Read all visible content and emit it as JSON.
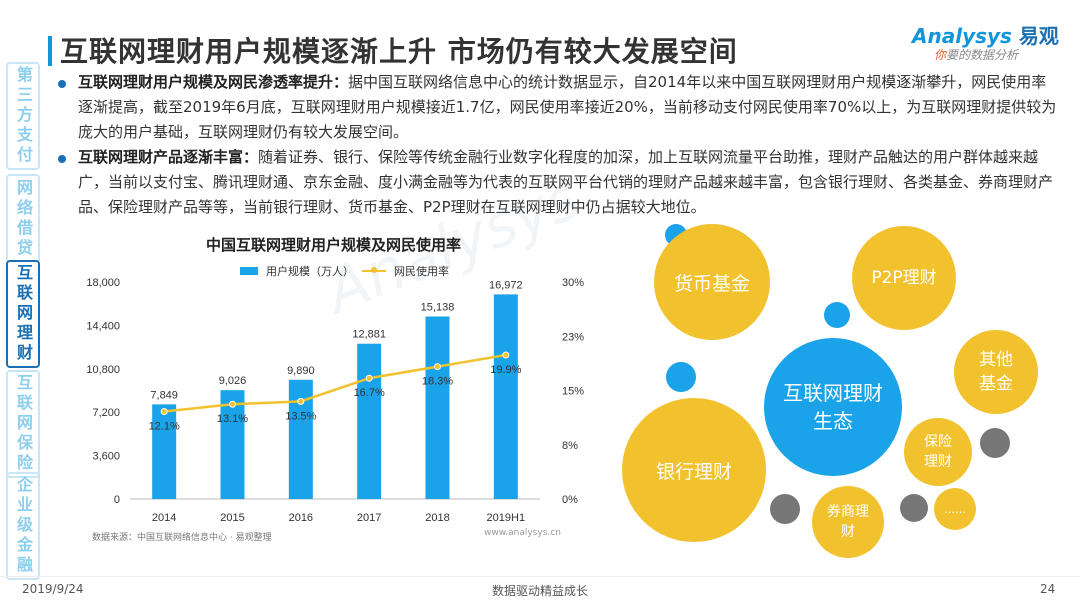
{
  "title": "互联网理财用户规模逐渐上升 市场仍有较大发展空间",
  "logo": {
    "main": "Analysys",
    "cn": "易观",
    "sub_first": "你",
    "sub_rest": "要的数据分析"
  },
  "side_nav": [
    {
      "label": "第三方支付",
      "active": false
    },
    {
      "label": "网络借贷",
      "active": false
    },
    {
      "label": "互联网理财",
      "active": true
    },
    {
      "label": "互联网保险",
      "active": false
    },
    {
      "label": "企业级金融",
      "active": false
    }
  ],
  "bullets": [
    {
      "head": "互联网理财用户规模及网民渗透率提升：",
      "body": "据中国互联网络信息中心的统计数据显示，自2014年以来中国互联网理财用户规模逐渐攀升，网民使用率逐渐提高，截至2019年6月底，互联网理财用户规模接近1.7亿，网民使用率接近20%，当前移动支付网民使用率70%以上，为互联网理财提供较为庞大的用户基础，互联网理财仍有较大发展空间。"
    },
    {
      "head": "互联网理财产品逐渐丰富：",
      "body": "随着证券、银行、保险等传统金融行业数字化程度的加深，加上互联网流量平台助推，理财产品触达的用户群体越来越广，当前以支付宝、腾讯理财通、京东金融、度小满金融等为代表的互联网平台代销的理财产品越来越丰富，包含银行理财、各类基金、券商理财产品、保险理财产品等等，当前银行理财、货币基金、P2P理财在互联网理财中仍占据较大地位。"
    }
  ],
  "chart_data": {
    "type": "bar",
    "title": "中国互联网理财用户规模及网民使用率",
    "categories": [
      "2014",
      "2015",
      "2016",
      "2017",
      "2018",
      "2019H1"
    ],
    "series": [
      {
        "name": "用户规模（万人）",
        "type": "bar",
        "values": [
          7849,
          9026,
          9890,
          12881,
          15138,
          16972
        ],
        "labels": [
          "7,849",
          "9,026",
          "9,890",
          "12,881",
          "15,138",
          "16,972"
        ],
        "color": "#1aa3e8",
        "axis": "left"
      },
      {
        "name": "网民使用率",
        "type": "line",
        "values": [
          12.1,
          13.1,
          13.5,
          16.7,
          18.3,
          19.9
        ],
        "labels": [
          "12.1%",
          "13.1%",
          "13.5%",
          "16.7%",
          "18.3%",
          "19.9%"
        ],
        "color": "#f2c12e",
        "axis": "right"
      }
    ],
    "ylim_left": [
      0,
      18000
    ],
    "yticks_left": [
      "0",
      "3,600",
      "7,200",
      "10,800",
      "14,400",
      "18,000"
    ],
    "ylim_right": [
      0,
      30
    ],
    "yticks_right": [
      "0%",
      "8%",
      "15%",
      "23%",
      "30%"
    ],
    "legend": "top",
    "source": "数据来源：中国互联网络信息中心 · 易观整理",
    "website": "www.analysys.cn"
  },
  "ecosystem": {
    "center": "互联网理财生态",
    "items": [
      "货币基金",
      "P2P理财",
      "其他基金",
      "保险理财",
      "银行理财",
      "券商理财",
      "……"
    ]
  },
  "footer": {
    "date": "2019/9/24",
    "slogan": "数据驱动精益成长",
    "page": "24"
  }
}
